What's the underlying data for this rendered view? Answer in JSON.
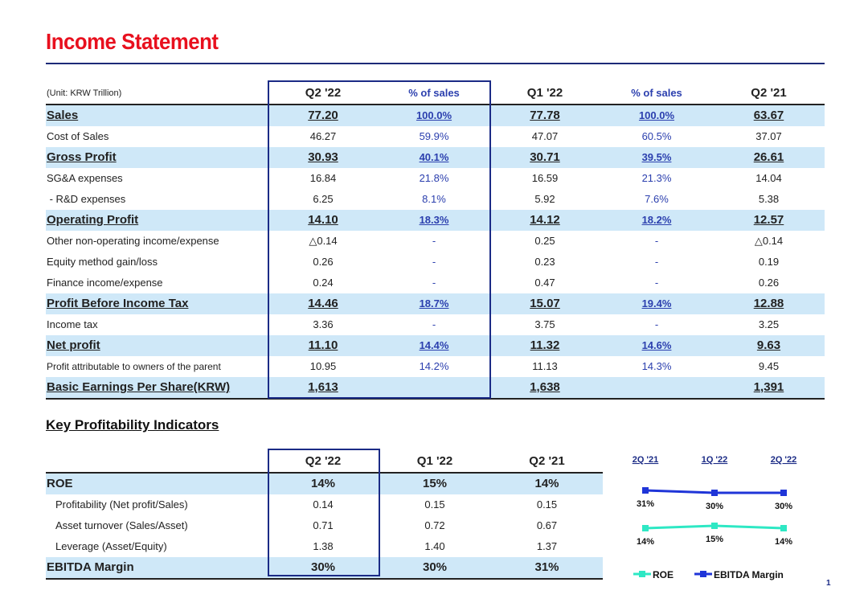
{
  "title": "Income Statement",
  "income": {
    "unit": "(Unit: KRW Trillion)",
    "headers": [
      "Q2 '22",
      "% of sales",
      "Q1 '22",
      "% of sales",
      "Q2 '21"
    ],
    "rows": [
      {
        "label": "Sales",
        "q222": "77.20",
        "pct1": "100.0%",
        "q122": "77.78",
        "pct2": "100.0%",
        "q221": "63.67"
      },
      {
        "label": "Cost of Sales",
        "q222": "46.27",
        "pct1": "59.9%",
        "q122": "47.07",
        "pct2": "60.5%",
        "q221": "37.07"
      },
      {
        "label": "Gross Profit",
        "q222": "30.93",
        "pct1": "40.1%",
        "q122": "30.71",
        "pct2": "39.5%",
        "q221": "26.61"
      },
      {
        "label": "SG&A expenses",
        "q222": "16.84",
        "pct1": "21.8%",
        "q122": "16.59",
        "pct2": "21.3%",
        "q221": "14.04"
      },
      {
        "label": " - R&D expenses",
        "q222": "6.25",
        "pct1": "8.1%",
        "q122": "5.92",
        "pct2": "7.6%",
        "q221": "5.38"
      },
      {
        "label": "Operating Profit",
        "q222": "14.10",
        "pct1": "18.3%",
        "q122": "14.12",
        "pct2": "18.2%",
        "q221": "12.57"
      },
      {
        "label": "Other non-operating income/expense",
        "q222": "△0.14",
        "pct1": "-",
        "q122": "0.25",
        "pct2": "-",
        "q221": "△0.14"
      },
      {
        "label": "Equity method gain/loss",
        "q222": "0.26",
        "pct1": "-",
        "q122": "0.23",
        "pct2": "-",
        "q221": "0.19"
      },
      {
        "label": "Finance income/expense",
        "q222": "0.24",
        "pct1": "-",
        "q122": "0.47",
        "pct2": "-",
        "q221": "0.26"
      },
      {
        "label": "Profit Before Income Tax",
        "q222": "14.46",
        "pct1": "18.7%",
        "q122": "15.07",
        "pct2": "19.4%",
        "q221": "12.88"
      },
      {
        "label": "Income tax",
        "q222": "3.36",
        "pct1": "-",
        "q122": "3.75",
        "pct2": "-",
        "q221": "3.25"
      },
      {
        "label": "Net profit",
        "q222": "11.10",
        "pct1": "14.4%",
        "q122": "11.32",
        "pct2": "14.6%",
        "q221": "9.63"
      },
      {
        "label": "Profit attributable to owners of the parent",
        "q222": "10.95",
        "pct1": "14.2%",
        "q122": "11.13",
        "pct2": "14.3%",
        "q221": "9.45"
      },
      {
        "label": "Basic Earnings Per Share(KRW)",
        "q222": "1,613",
        "pct1": "",
        "q122": "1,638",
        "pct2": "",
        "q221": "1,391"
      }
    ]
  },
  "kpi": {
    "title": "Key Profitability Indicators",
    "headers": [
      "Q2 '22",
      "Q1 '22",
      "Q2 '21"
    ],
    "rows": [
      {
        "label": "ROE",
        "v1": "14%",
        "v2": "15%",
        "v3": "14%"
      },
      {
        "label": "Profitability (Net profit/Sales)",
        "v1": "0.14",
        "v2": "0.15",
        "v3": "0.15"
      },
      {
        "label": "Asset turnover (Sales/Asset)",
        "v1": "0.71",
        "v2": "0.72",
        "v3": "0.67"
      },
      {
        "label": "Leverage (Asset/Equity)",
        "v1": "1.38",
        "v2": "1.40",
        "v3": "1.37"
      },
      {
        "label": "EBITDA Margin",
        "v1": "30%",
        "v2": "30%",
        "v3": "31%"
      }
    ]
  },
  "chart_data": {
    "type": "line",
    "categories": [
      "2Q '21",
      "1Q '22",
      "2Q '22"
    ],
    "series": [
      {
        "name": "EBITDA Margin",
        "values": [
          31,
          30,
          30
        ],
        "labels": [
          "31%",
          "30%",
          "30%"
        ],
        "color": "#1f35d8"
      },
      {
        "name": "ROE",
        "values": [
          14,
          15,
          14
        ],
        "labels": [
          "14%",
          "15%",
          "14%"
        ],
        "color": "#2ee8c4"
      }
    ],
    "legend": "bottom"
  },
  "colors": {
    "title": "#e8101e",
    "highlight": "#cfe8f8",
    "box": "#1b2b86",
    "pct_text": "#2b3fae"
  },
  "page_number": "1"
}
